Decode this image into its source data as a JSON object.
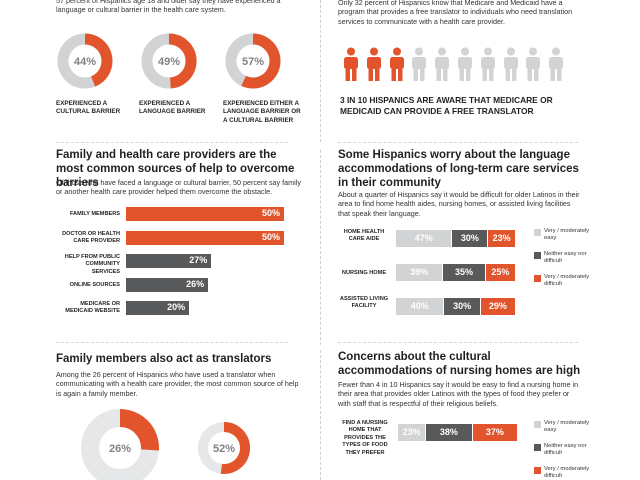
{
  "colors": {
    "orange": "#e2552c",
    "dark": "#58595b",
    "light": "#d1d3d4",
    "text": "#231f20"
  },
  "barriers": {
    "intro": "57 percent of Hispanics age 18 and older say they have experienced a language or cultural barrier in the health care system.",
    "items": [
      {
        "pct": 44,
        "label": "44%",
        "caption": "EXPERIENCED A CULTURAL BARRIER"
      },
      {
        "pct": 49,
        "label": "49%",
        "caption": "EXPERIENCED A LANGUAGE BARRIER"
      },
      {
        "pct": 57,
        "label": "57%",
        "caption": "EXPERIENCED EITHER A LANGUAGE BARRIER OR A CULTURAL BARRIER"
      }
    ]
  },
  "awareness": {
    "intro": "Only 32 percent of Hispanics know that Medicare and Medicaid have a program that provides a free translator to individuals who need translation services to communicate with a health care provider.",
    "total_people": 10,
    "aware_people": 3,
    "headline": "3 IN 10 HISPANICS ARE AWARE THAT MEDICARE OR MEDICAID CAN PROVIDE A FREE TRANSLATOR"
  },
  "help_sources": {
    "title": "Family and health care providers are the most common sources of help to overcome barriers",
    "intro": "Of those who have faced a language or cultural barrier, 50 percent say family or another health care provider helped them overcome the obstacle."
  },
  "translators": {
    "title": "Family members also act as translators",
    "intro": "Among the 26 percent of Hispanics who have used a translator when communicating with a health care provider, the most common source of help is again a family member.",
    "outer": {
      "pct": 26,
      "label": "26%"
    },
    "inner": {
      "pct": 52,
      "label": "52%"
    }
  },
  "ltc": {
    "title": "Some Hispanics worry about the language accommodations of long-term care services in their community",
    "intro": "About a quarter of Hispanics say it would be difficult for older Latinos in their area to find home health aides, nursing homes, or assisted living facilities that speak their language."
  },
  "nursing": {
    "title": "Concerns about the cultural accommodations of nursing homes are high",
    "intro": "Fewer than 4 in 10 Hispanics say it would be easy to find a nursing home in their area that provides older Latinos with the types of food they prefer or with staff that is respectful of their religious beliefs."
  },
  "legend": {
    "easy": "Very / moderately easy",
    "neither": "Neither easy nor difficult",
    "difficult": "Very / moderately difficult"
  },
  "chart_data": [
    {
      "type": "bar",
      "title": "Family and health care providers are the most common sources of help to overcome barriers",
      "categories": [
        "FAMILY MEMBERS",
        "DOCTOR OR HEALTH CARE PROVIDER",
        "HELP FROM PUBLIC COMMUNITY SERVICES",
        "ONLINE SOURCES",
        "MEDICARE OR MEDICAID WEBSITE"
      ],
      "values": [
        50,
        50,
        27,
        26,
        20
      ],
      "value_labels": [
        "50%",
        "50%",
        "27%",
        "26%",
        "20%"
      ],
      "highlight": [
        true,
        true,
        false,
        false,
        false
      ],
      "xlim": [
        0,
        50
      ]
    },
    {
      "type": "bar",
      "stacked": true,
      "title": "Some Hispanics worry about the language accommodations of long-term care services in their community",
      "categories": [
        "HOME HEALTH CARE AIDE",
        "NURSING HOME",
        "ASSISTED LIVING FACILITY"
      ],
      "series": [
        {
          "name": "Very / moderately easy",
          "values": [
            47,
            39,
            40
          ],
          "labels": [
            "47%",
            "39%",
            "40%"
          ]
        },
        {
          "name": "Neither easy nor difficult",
          "values": [
            30,
            35,
            30
          ],
          "labels": [
            "30%",
            "35%",
            "30%"
          ]
        },
        {
          "name": "Very / moderately difficult",
          "values": [
            23,
            25,
            29
          ],
          "labels": [
            "23%",
            "25%",
            "29%"
          ]
        }
      ],
      "legend": "right"
    },
    {
      "type": "bar",
      "stacked": true,
      "title": "Concerns about the cultural accommodations of nursing homes are high",
      "categories": [
        "FIND A NURSING HOME THAT PROVIDES THE TYPES OF FOOD THEY PREFER"
      ],
      "series": [
        {
          "name": "Very / moderately easy",
          "values": [
            23
          ],
          "labels": [
            "23%"
          ]
        },
        {
          "name": "Neither easy nor difficult",
          "values": [
            38
          ],
          "labels": [
            "38%"
          ]
        },
        {
          "name": "Very / moderately difficult",
          "values": [
            37
          ],
          "labels": [
            "37%"
          ]
        }
      ],
      "legend": "right"
    }
  ]
}
